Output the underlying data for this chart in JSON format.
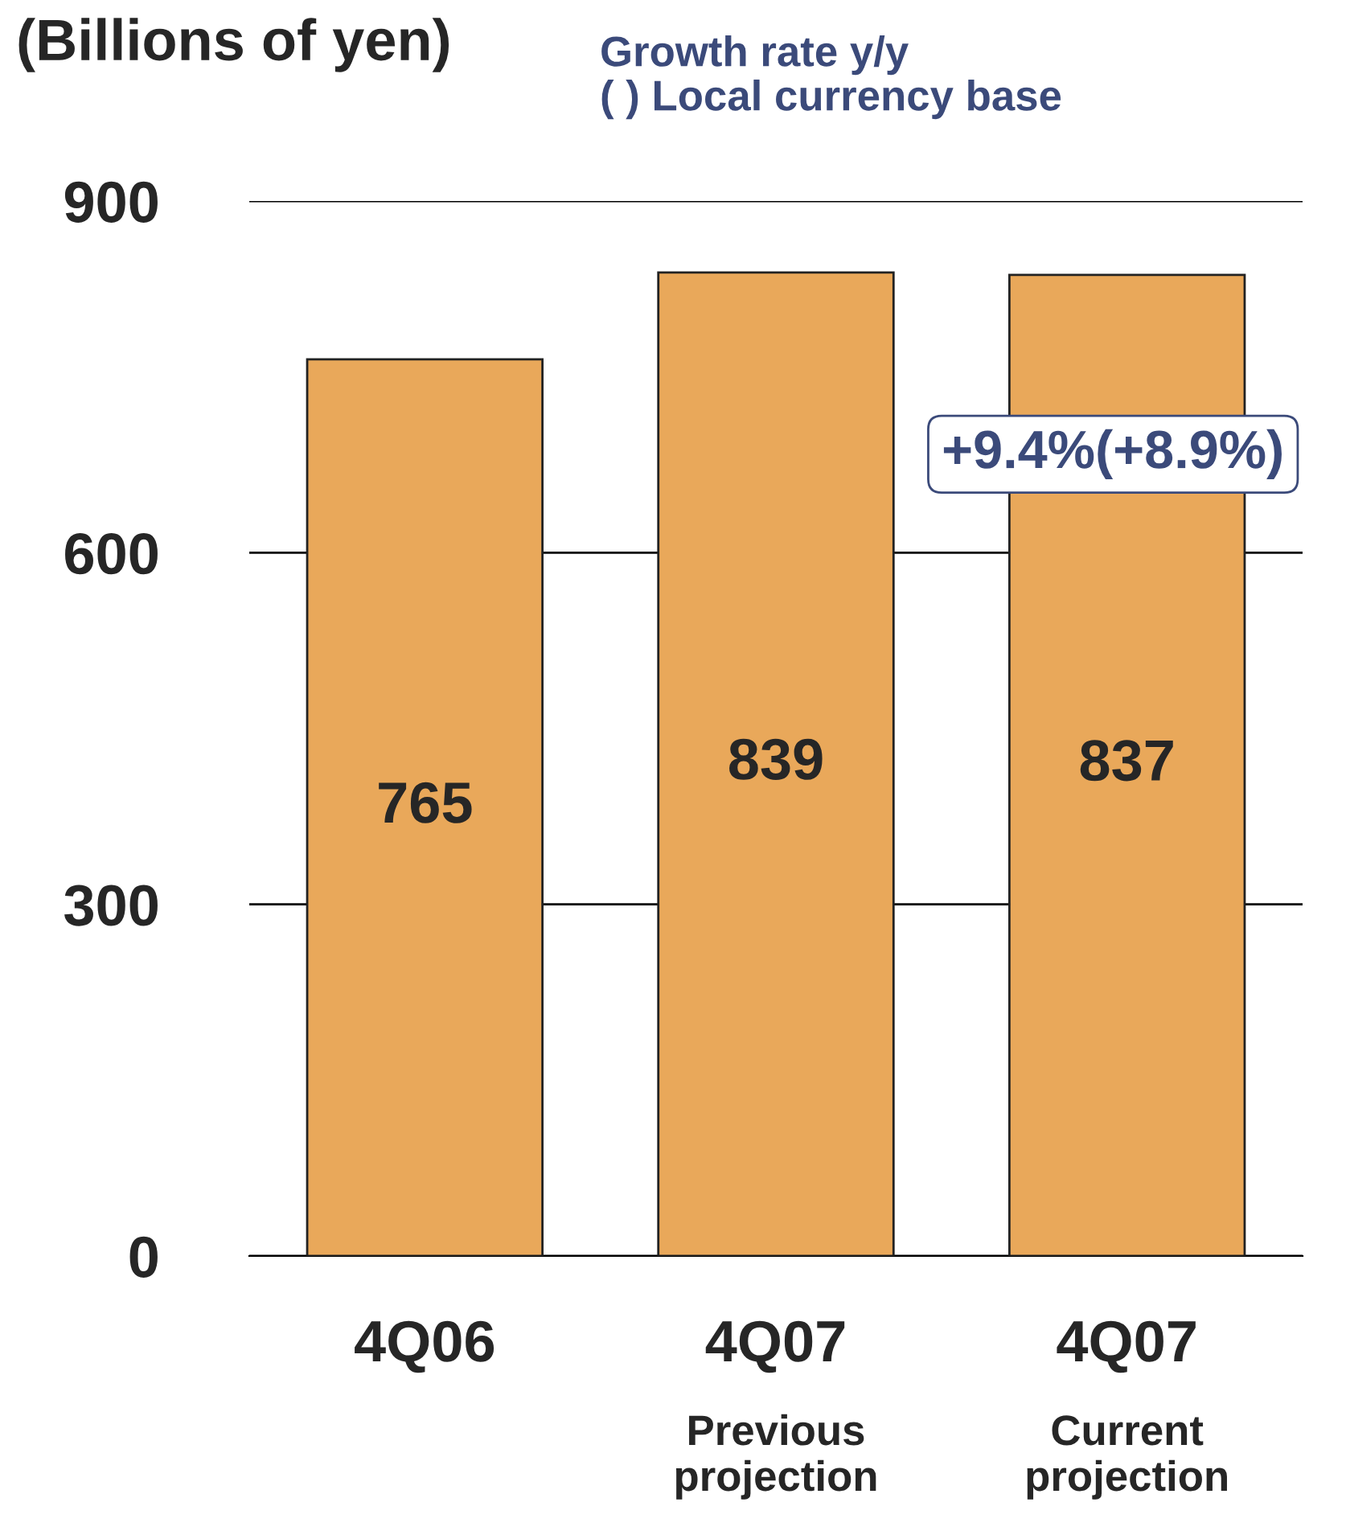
{
  "chart_data": {
    "type": "bar",
    "ylabel": "(Billions of yen)",
    "categories": [
      "4Q06",
      "4Q07\nPrevious\nprojection",
      "4Q07\nCurrent\nprojection"
    ],
    "values": [
      765,
      839,
      837
    ],
    "color": "#e9a85a",
    "ylim": [
      0,
      900
    ],
    "yticks": [
      0,
      300,
      600,
      900
    ],
    "grid": "y",
    "data_labels": true,
    "annotations": [
      "Growth rate y/y\n( ) Local currency base",
      "+9.4%(+8.9%)"
    ]
  }
}
